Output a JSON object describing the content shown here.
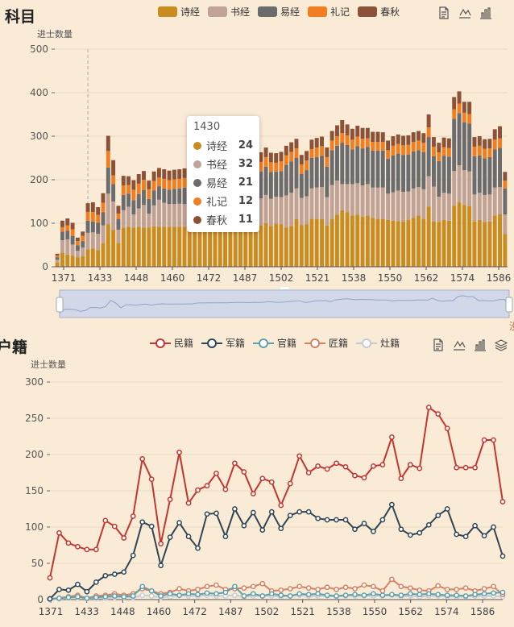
{
  "chart1": {
    "title": "科目",
    "legend": [
      {
        "name": "诗经",
        "color": "#c98c21"
      },
      {
        "name": "书经",
        "color": "#c0a396"
      },
      {
        "name": "易经",
        "color": "#6b6c6e"
      },
      {
        "name": "礼记",
        "color": "#f27e21"
      },
      {
        "name": "春秋",
        "color": "#8b5237"
      }
    ],
    "y_axis_name": "进士数量",
    "tooltip": {
      "title": "1430",
      "rows": [
        {
          "name": "诗经",
          "value": "24"
        },
        {
          "name": "书经",
          "value": "32"
        },
        {
          "name": "易经",
          "value": "21"
        },
        {
          "name": "礼记",
          "value": "12"
        },
        {
          "name": "春秋",
          "value": "11"
        }
      ]
    },
    "toolbox": [
      "data-view-icon",
      "line-chart-icon",
      "bar-chart-icon"
    ],
    "zoom_right_label": "没"
  },
  "chart2": {
    "title": "户籍",
    "legend": [
      {
        "name": "民籍",
        "color": "#c23531"
      },
      {
        "name": "军籍",
        "color": "#2f4554"
      },
      {
        "name": "官籍",
        "color": "#61a0a8"
      },
      {
        "name": "匠籍",
        "color": "#d48265"
      },
      {
        "name": "灶籍",
        "color": "#c4ccd3"
      }
    ],
    "y_axis_name": "进士数量",
    "toolbox": [
      "data-view-icon",
      "line-chart-icon",
      "bar-chart-icon",
      "stack-icon"
    ]
  },
  "chart_data": [
    {
      "type": "bar",
      "stacked": true,
      "title": "科目",
      "ylabel": "进士数量",
      "ylim": [
        0,
        500
      ],
      "yticks": [
        0,
        100,
        200,
        300,
        400,
        500
      ],
      "x_tick_labels": [
        "1371",
        "1433",
        "1448",
        "1460",
        "1472",
        "1487",
        "1502",
        "1521",
        "1538",
        "1550",
        "1562",
        "1574",
        "1586"
      ],
      "category_count": 89,
      "series": [
        {
          "name": "诗经",
          "color": "#c98c21",
          "values": [
            10,
            33,
            28,
            25,
            22,
            24,
            40,
            42,
            38,
            55,
            98,
            85,
            55,
            90,
            92,
            90,
            92,
            90,
            90,
            93,
            92,
            92,
            92,
            92,
            92,
            92,
            92,
            92,
            92,
            91,
            91,
            90,
            91,
            91,
            92,
            91,
            92,
            90,
            93,
            92,
            95,
            100,
            94,
            99,
            98,
            90,
            94,
            110,
            96,
            98,
            110,
            110,
            110,
            95,
            110,
            120,
            130,
            125,
            118,
            120,
            115,
            118,
            112,
            110,
            110,
            108,
            106,
            105,
            104,
            108,
            112,
            118,
            110,
            138,
            104,
            103,
            108,
            106,
            140,
            148,
            142,
            139,
            104,
            108,
            103,
            104,
            118,
            121,
            75
          ]
        },
        {
          "name": "书经",
          "color": "#c0a396",
          "values": [
            6,
            28,
            35,
            26,
            15,
            20,
            38,
            37,
            38,
            40,
            70,
            65,
            30,
            40,
            46,
            30,
            42,
            52,
            32,
            48,
            62,
            55,
            52,
            52,
            53,
            52,
            50,
            55,
            55,
            56,
            58,
            60,
            60,
            62,
            62,
            65,
            65,
            60,
            62,
            62,
            62,
            65,
            62,
            62,
            62,
            74,
            76,
            70,
            62,
            64,
            70,
            72,
            73,
            65,
            78,
            78,
            60,
            65,
            72,
            72,
            72,
            72,
            70,
            72,
            72,
            60,
            65,
            70,
            68,
            65,
            68,
            65,
            68,
            70,
            80,
            58,
            62,
            62,
            80,
            85,
            80,
            80,
            62,
            62,
            62,
            62,
            64,
            62,
            45
          ]
        },
        {
          "name": "易经",
          "color": "#6b6c6e",
          "values": [
            6,
            20,
            20,
            20,
            12,
            15,
            28,
            25,
            25,
            30,
            60,
            40,
            25,
            35,
            30,
            33,
            33,
            34,
            34,
            34,
            31,
            33,
            33,
            35,
            35,
            38,
            40,
            55,
            55,
            55,
            55,
            55,
            55,
            55,
            55,
            56,
            58,
            60,
            62,
            60,
            62,
            65,
            62,
            58,
            60,
            70,
            72,
            70,
            55,
            60,
            70,
            70,
            72,
            70,
            80,
            80,
            95,
            90,
            80,
            85,
            85,
            85,
            85,
            85,
            85,
            80,
            85,
            85,
            85,
            85,
            85,
            85,
            85,
            90,
            70,
            82,
            85,
            85,
            120,
            120,
            110,
            110,
            88,
            86,
            84,
            86,
            88,
            90,
            60
          ]
        },
        {
          "name": "礼记",
          "color": "#f27e21",
          "values": [
            4,
            10,
            12,
            15,
            10,
            12,
            20,
            22,
            18,
            22,
            38,
            20,
            12,
            22,
            20,
            24,
            24,
            24,
            22,
            22,
            20,
            22,
            22,
            22,
            22,
            22,
            22,
            22,
            22,
            24,
            22,
            22,
            22,
            22,
            24,
            24,
            22,
            22,
            22,
            22,
            22,
            22,
            22,
            20,
            22,
            22,
            22,
            22,
            22,
            22,
            20,
            22,
            22,
            22,
            22,
            22,
            22,
            22,
            22,
            22,
            22,
            20,
            20,
            20,
            20,
            20,
            22,
            22,
            22,
            22,
            22,
            22,
            22,
            22,
            22,
            20,
            20,
            20,
            22,
            22,
            22,
            22,
            22,
            22,
            22,
            20,
            22,
            22,
            18
          ]
        },
        {
          "name": "春秋",
          "color": "#8b5237",
          "values": [
            4,
            15,
            16,
            15,
            8,
            10,
            20,
            22,
            18,
            22,
            35,
            35,
            18,
            22,
            20,
            22,
            22,
            20,
            20,
            22,
            22,
            22,
            22,
            22,
            22,
            22,
            22,
            22,
            22,
            22,
            22,
            22,
            22,
            22,
            22,
            22,
            22,
            22,
            22,
            22,
            22,
            22,
            22,
            22,
            22,
            22,
            22,
            22,
            22,
            22,
            22,
            22,
            22,
            22,
            22,
            25,
            30,
            25,
            25,
            25,
            25,
            24,
            23,
            23,
            22,
            22,
            22,
            22,
            22,
            22,
            22,
            22,
            22,
            30,
            22,
            22,
            22,
            22,
            28,
            28,
            25,
            28,
            22,
            22,
            22,
            22,
            24,
            28,
            20
          ]
        }
      ]
    },
    {
      "type": "line",
      "title": "户籍",
      "ylabel": "进士数量",
      "ylim": [
        0,
        300
      ],
      "yticks": [
        0,
        50,
        100,
        150,
        200,
        250,
        300
      ],
      "x_tick_labels": [
        "1371",
        "1433",
        "1448",
        "1460",
        "1472",
        "1487",
        "1502",
        "1521",
        "1538",
        "1550",
        "1562",
        "1574",
        "1586"
      ],
      "series": [
        {
          "name": "民籍",
          "color": "#c23531",
          "values": [
            30,
            92,
            78,
            73,
            69,
            69,
            109,
            101,
            85,
            115,
            194,
            166,
            77,
            138,
            203,
            133,
            151,
            157,
            174,
            152,
            188,
            176,
            146,
            167,
            162,
            130,
            160,
            198,
            175,
            184,
            180,
            188,
            183,
            171,
            168,
            184,
            186,
            224,
            167,
            186,
            181,
            265,
            256,
            236,
            182,
            182,
            182,
            220,
            220,
            135
          ]
        },
        {
          "name": "军籍",
          "color": "#2f4554",
          "values": [
            1,
            14,
            13,
            21,
            11,
            24,
            33,
            35,
            38,
            61,
            107,
            101,
            47,
            86,
            106,
            87,
            71,
            118,
            119,
            87,
            125,
            102,
            120,
            96,
            121,
            98,
            116,
            121,
            121,
            112,
            110,
            110,
            110,
            97,
            105,
            94,
            110,
            131,
            97,
            89,
            92,
            103,
            116,
            125,
            90,
            87,
            102,
            88,
            100,
            60
          ]
        },
        {
          "name": "官籍",
          "color": "#61a0a8",
          "values": [
            1,
            2,
            3,
            4,
            2,
            3,
            4,
            5,
            4,
            5,
            18,
            12,
            5,
            8,
            6,
            8,
            7,
            9,
            8,
            10,
            18,
            5,
            8,
            5,
            8,
            6,
            5,
            8,
            7,
            8,
            6,
            5,
            6,
            7,
            6,
            8,
            6,
            7,
            6,
            8,
            7,
            8,
            7,
            6,
            6,
            5,
            7,
            8,
            9,
            10
          ]
        },
        {
          "name": "匠籍",
          "color": "#d48265",
          "values": [
            1,
            2,
            4,
            6,
            2,
            5,
            6,
            8,
            6,
            8,
            15,
            12,
            8,
            10,
            15,
            12,
            14,
            18,
            20,
            14,
            15,
            16,
            18,
            22,
            12,
            13,
            15,
            18,
            16,
            14,
            17,
            14,
            17,
            15,
            20,
            18,
            12,
            28,
            18,
            16,
            13,
            12,
            19,
            14,
            14,
            16,
            12,
            15,
            18,
            7
          ]
        },
        {
          "name": "灶籍",
          "color": "#c4ccd3",
          "values": [
            0,
            1,
            2,
            3,
            1,
            2,
            2,
            3,
            3,
            3,
            6,
            5,
            3,
            4,
            6,
            5,
            5,
            6,
            5,
            5,
            6,
            4,
            5,
            5,
            5,
            4,
            5,
            6,
            5,
            5,
            5,
            4,
            5,
            5,
            5,
            5,
            5,
            6,
            4,
            5,
            4,
            5,
            5,
            4,
            4,
            4,
            5,
            5,
            5,
            4
          ]
        }
      ]
    }
  ]
}
